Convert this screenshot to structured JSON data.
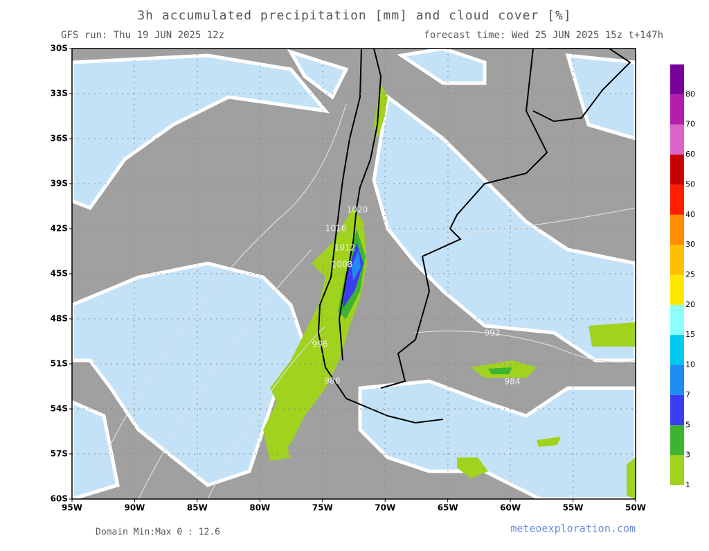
{
  "map": {
    "title": "3h accumulated precipitation [mm] and cloud cover [%]",
    "run": "GFS run: Thu 19 JUN 2025 12z",
    "forecast": "forecast time: Wed 25 JUN 2025 15z  t+147h",
    "lat_labels": [
      "30S",
      "33S",
      "36S",
      "39S",
      "42S",
      "45S",
      "48S",
      "51S",
      "54S",
      "57S",
      "60S"
    ],
    "lon_labels": [
      "95W",
      "90W",
      "85W",
      "80W",
      "75W",
      "70W",
      "65W",
      "60W",
      "55W",
      "50W"
    ],
    "isobar_labels": [
      "1020",
      "1016",
      "1012",
      "1008",
      "996",
      "992",
      "988",
      "984"
    ],
    "colorbar": {
      "levels": [
        1,
        3,
        5,
        7,
        10,
        15,
        20,
        25,
        30,
        40,
        50,
        60,
        70,
        80
      ],
      "colors": [
        "#a0d21e",
        "#3cb432",
        "#3c3cf0",
        "#1e8cf0",
        "#00c8f0",
        "#8cffff",
        "#ffe600",
        "#ffbe00",
        "#ff8c00",
        "#ff1e00",
        "#c80000",
        "#dc64c8",
        "#b41eaa",
        "#78009b"
      ]
    },
    "domain_minmax": "Domain Min:Max 0 : 12.6",
    "credit": "meteoexploration.com"
  }
}
